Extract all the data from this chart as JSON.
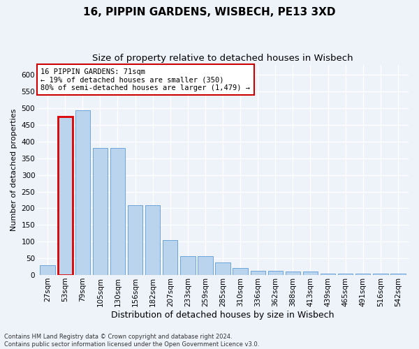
{
  "title": "16, PIPPIN GARDENS, WISBECH, PE13 3XD",
  "subtitle": "Size of property relative to detached houses in Wisbech",
  "xlabel": "Distribution of detached houses by size in Wisbech",
  "ylabel": "Number of detached properties",
  "categories": [
    "27sqm",
    "53sqm",
    "79sqm",
    "105sqm",
    "130sqm",
    "156sqm",
    "182sqm",
    "207sqm",
    "233sqm",
    "259sqm",
    "285sqm",
    "310sqm",
    "336sqm",
    "362sqm",
    "388sqm",
    "413sqm",
    "439sqm",
    "465sqm",
    "491sqm",
    "516sqm",
    "542sqm"
  ],
  "values": [
    30,
    475,
    495,
    380,
    380,
    210,
    210,
    105,
    57,
    57,
    37,
    20,
    13,
    13,
    10,
    10,
    5,
    5,
    5,
    5,
    5
  ],
  "highlight_bar_index": 1,
  "bar_color": "#bad4ee",
  "bar_edge_color": "#5b9bd5",
  "highlight_bar_edge_color": "#dd0000",
  "highlight_bar_linewidth": 2.0,
  "annotation_text": "16 PIPPIN GARDENS: 71sqm\n← 19% of detached houses are smaller (350)\n80% of semi-detached houses are larger (1,479) →",
  "annotation_box_color": "#ffffff",
  "annotation_box_edge_color": "#cc0000",
  "footnote": "Contains HM Land Registry data © Crown copyright and database right 2024.\nContains public sector information licensed under the Open Government Licence v3.0.",
  "ylim": [
    0,
    630
  ],
  "yticks": [
    0,
    50,
    100,
    150,
    200,
    250,
    300,
    350,
    400,
    450,
    500,
    550,
    600
  ],
  "bg_color": "#eef2f9",
  "grid_color": "#ffffff",
  "title_fontsize": 11,
  "subtitle_fontsize": 9.5,
  "xlabel_fontsize": 9,
  "ylabel_fontsize": 8,
  "tick_fontsize": 7.5,
  "annotation_fontsize": 7.5,
  "footnote_fontsize": 6
}
